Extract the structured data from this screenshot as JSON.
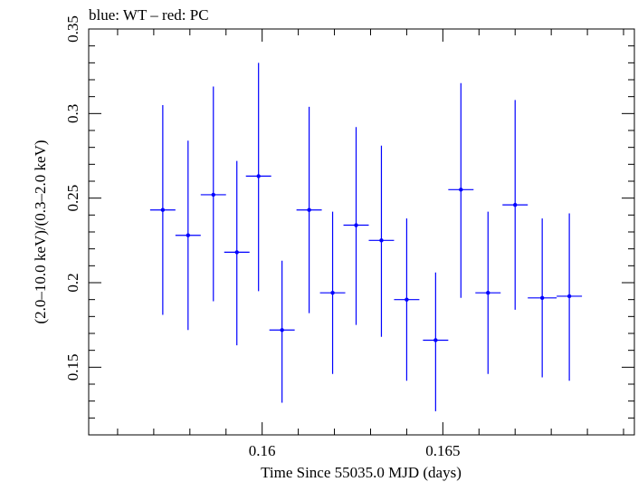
{
  "chart_data": {
    "type": "scatter",
    "title": "blue: WT – red: PC",
    "xlabel": "Time Since 55035.0 MJD (days)",
    "ylabel": "(2.0–10.0 keV)/(0.3–2.0 keV)",
    "xlim": [
      0.1552,
      0.1703
    ],
    "ylim": [
      0.11,
      0.35
    ],
    "xticks": [
      {
        "value": 0.16,
        "label": "0.16"
      },
      {
        "value": 0.165,
        "label": "0.165"
      }
    ],
    "yticks": [
      {
        "value": 0.15,
        "label": "0.15"
      },
      {
        "value": 0.2,
        "label": "0.2"
      },
      {
        "value": 0.25,
        "label": "0.25"
      },
      {
        "value": 0.3,
        "label": "0.3"
      },
      {
        "value": 0.35,
        "label": "0.35"
      }
    ],
    "x_minor_step": 0.001,
    "y_minor_step": 0.01,
    "grid": false,
    "colors": {
      "wt": "#0000ff",
      "axis": "#000000"
    },
    "series": [
      {
        "color": "#0000ff",
        "points": [
          {
            "x": 0.15725,
            "xerr": 0.00035,
            "y": 0.243,
            "ylo": 0.181,
            "yhi": 0.305
          },
          {
            "x": 0.15795,
            "xerr": 0.00035,
            "y": 0.228,
            "ylo": 0.172,
            "yhi": 0.284
          },
          {
            "x": 0.15865,
            "xerr": 0.00035,
            "y": 0.252,
            "ylo": 0.189,
            "yhi": 0.316
          },
          {
            "x": 0.1593,
            "xerr": 0.00035,
            "y": 0.218,
            "ylo": 0.163,
            "yhi": 0.272
          },
          {
            "x": 0.1599,
            "xerr": 0.00035,
            "y": 0.263,
            "ylo": 0.195,
            "yhi": 0.33
          },
          {
            "x": 0.16055,
            "xerr": 0.00035,
            "y": 0.172,
            "ylo": 0.129,
            "yhi": 0.213
          },
          {
            "x": 0.1613,
            "xerr": 0.00035,
            "y": 0.243,
            "ylo": 0.182,
            "yhi": 0.304
          },
          {
            "x": 0.16195,
            "xerr": 0.00035,
            "y": 0.194,
            "ylo": 0.146,
            "yhi": 0.242
          },
          {
            "x": 0.1626,
            "xerr": 0.00035,
            "y": 0.234,
            "ylo": 0.175,
            "yhi": 0.292
          },
          {
            "x": 0.1633,
            "xerr": 0.00035,
            "y": 0.225,
            "ylo": 0.168,
            "yhi": 0.281
          },
          {
            "x": 0.164,
            "xerr": 0.00035,
            "y": 0.19,
            "ylo": 0.142,
            "yhi": 0.238
          },
          {
            "x": 0.1648,
            "xerr": 0.00035,
            "y": 0.166,
            "ylo": 0.124,
            "yhi": 0.206
          },
          {
            "x": 0.1655,
            "xerr": 0.00035,
            "y": 0.255,
            "ylo": 0.191,
            "yhi": 0.318
          },
          {
            "x": 0.16625,
            "xerr": 0.00035,
            "y": 0.194,
            "ylo": 0.146,
            "yhi": 0.242
          },
          {
            "x": 0.167,
            "xerr": 0.00035,
            "y": 0.246,
            "ylo": 0.184,
            "yhi": 0.308
          },
          {
            "x": 0.16775,
            "xerr": 0.0004,
            "y": 0.191,
            "ylo": 0.144,
            "yhi": 0.238
          },
          {
            "x": 0.1685,
            "xerr": 0.00035,
            "y": 0.192,
            "ylo": 0.142,
            "yhi": 0.241
          }
        ]
      }
    ]
  }
}
